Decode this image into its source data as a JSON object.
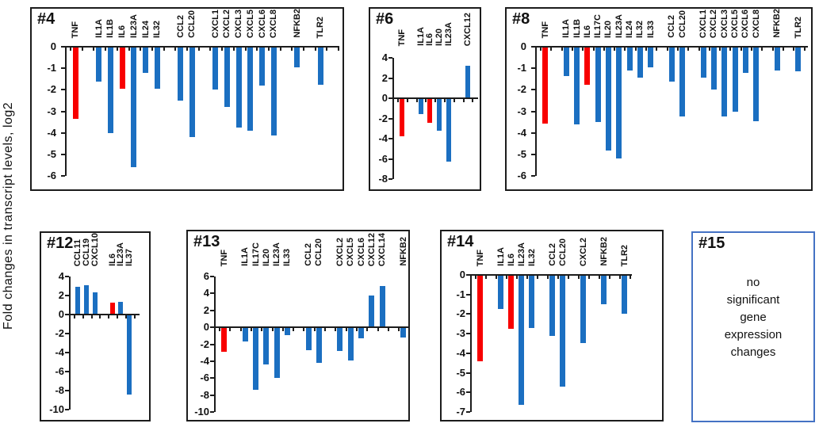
{
  "figure": {
    "y_axis_label": "Fold changes in transcript levels, log2"
  },
  "colors": {
    "bar_blue": "#1b6fc1",
    "bar_red": "#f80000",
    "axis_black": "#1c1c1c",
    "note_border_blue": "#4472c4"
  },
  "chart_data": [
    {
      "id": "4",
      "type": "bar",
      "title": "#4",
      "ylabel": "Fold changes in transcript levels, log2",
      "ylim": [
        -6,
        0
      ],
      "yticks": [
        0,
        -1,
        -2,
        -3,
        -4,
        -5,
        -6
      ],
      "grid": false,
      "slots": [
        {
          "gene": "TNF",
          "value": -3.35,
          "color": "red"
        },
        null,
        {
          "gene": "IL1A",
          "value": -1.6,
          "color": "blue"
        },
        {
          "gene": "IL1B",
          "value": -4.0,
          "color": "blue"
        },
        {
          "gene": "IL6",
          "value": -1.95,
          "color": "red"
        },
        {
          "gene": "IL23A",
          "value": -5.6,
          "color": "blue"
        },
        {
          "gene": "IL24",
          "value": -1.2,
          "color": "blue"
        },
        {
          "gene": "IL32",
          "value": -1.95,
          "color": "blue"
        },
        null,
        {
          "gene": "CCL2",
          "value": -2.5,
          "color": "blue"
        },
        {
          "gene": "CCL20",
          "value": -4.2,
          "color": "blue"
        },
        null,
        {
          "gene": "CXCL1",
          "value": -2.0,
          "color": "blue"
        },
        {
          "gene": "CXCL2",
          "value": -2.8,
          "color": "blue"
        },
        {
          "gene": "CXCL3",
          "value": -3.75,
          "color": "blue"
        },
        {
          "gene": "CXCL5",
          "value": -3.9,
          "color": "blue"
        },
        {
          "gene": "CXCL6",
          "value": -1.8,
          "color": "blue"
        },
        {
          "gene": "CXCL8",
          "value": -4.1,
          "color": "blue"
        },
        null,
        {
          "gene": "NFKB2",
          "value": -0.95,
          "color": "blue"
        },
        null,
        {
          "gene": "TLR2",
          "value": -1.75,
          "color": "blue"
        }
      ]
    },
    {
      "id": "6",
      "type": "bar",
      "title": "#6",
      "ylim": [
        -8,
        4
      ],
      "yticks": [
        4,
        2,
        0,
        -2,
        -4,
        -6,
        -8
      ],
      "grid": false,
      "slots": [
        {
          "gene": "TNF",
          "value": -3.8,
          "color": "red"
        },
        null,
        {
          "gene": "IL1A",
          "value": -1.55,
          "color": "blue"
        },
        {
          "gene": "IL6",
          "value": -2.45,
          "color": "red"
        },
        {
          "gene": "IL20",
          "value": -3.25,
          "color": "blue"
        },
        {
          "gene": "IL23A",
          "value": -6.3,
          "color": "blue"
        },
        null,
        {
          "gene": "CXCL12",
          "value": 3.2,
          "color": "blue"
        },
        null
      ]
    },
    {
      "id": "8",
      "type": "bar",
      "title": "#8",
      "ylim": [
        -6,
        0
      ],
      "yticks": [
        0,
        -1,
        -2,
        -3,
        -4,
        -5,
        -6
      ],
      "grid": false,
      "slots": [
        {
          "gene": "TNF",
          "value": -3.55,
          "color": "red"
        },
        null,
        {
          "gene": "IL1A",
          "value": -1.35,
          "color": "blue"
        },
        {
          "gene": "IL1B",
          "value": -3.6,
          "color": "blue"
        },
        {
          "gene": "IL6",
          "value": -1.75,
          "color": "red"
        },
        {
          "gene": "IL17C",
          "value": -3.5,
          "color": "blue"
        },
        {
          "gene": "IL20",
          "value": -4.8,
          "color": "blue"
        },
        {
          "gene": "IL23A",
          "value": -5.2,
          "color": "blue"
        },
        {
          "gene": "IL24",
          "value": -1.1,
          "color": "blue"
        },
        {
          "gene": "IL32",
          "value": -1.45,
          "color": "blue"
        },
        {
          "gene": "IL33",
          "value": -0.95,
          "color": "blue"
        },
        null,
        {
          "gene": "CCL2",
          "value": -1.6,
          "color": "blue"
        },
        {
          "gene": "CCL20",
          "value": -3.25,
          "color": "blue"
        },
        null,
        {
          "gene": "CXCL1",
          "value": -1.45,
          "color": "blue"
        },
        {
          "gene": "CXCL2",
          "value": -2.0,
          "color": "blue"
        },
        {
          "gene": "CXCL3",
          "value": -3.25,
          "color": "blue"
        },
        {
          "gene": "CXCL5",
          "value": -3.0,
          "color": "blue"
        },
        {
          "gene": "CXCL6",
          "value": -1.2,
          "color": "blue"
        },
        {
          "gene": "CXCL8",
          "value": -3.45,
          "color": "blue"
        },
        null,
        {
          "gene": "NFKB2",
          "value": -1.1,
          "color": "blue"
        },
        null,
        {
          "gene": "TLR2",
          "value": -1.15,
          "color": "blue"
        }
      ]
    },
    {
      "id": "12",
      "type": "bar",
      "title": "#12",
      "ylim": [
        -10,
        4
      ],
      "yticks": [
        4,
        2,
        0,
        -2,
        -4,
        -6,
        -8,
        -10
      ],
      "grid": false,
      "slots": [
        {
          "gene": "CCL11",
          "value": 2.9,
          "color": "blue"
        },
        {
          "gene": "CCL19",
          "value": 3.05,
          "color": "blue"
        },
        {
          "gene": "CXCL10",
          "value": 2.35,
          "color": "blue"
        },
        null,
        {
          "gene": "IL6",
          "value": 1.25,
          "color": "red"
        },
        {
          "gene": "IL23A",
          "value": 1.3,
          "color": "blue"
        },
        {
          "gene": "IL37",
          "value": -8.4,
          "color": "blue"
        }
      ]
    },
    {
      "id": "13",
      "type": "bar",
      "title": "#13",
      "ylim": [
        -10,
        6
      ],
      "yticks": [
        6,
        4,
        2,
        0,
        -2,
        -4,
        -6,
        -8,
        -10
      ],
      "grid": false,
      "slots": [
        {
          "gene": "TNF",
          "value": -2.9,
          "color": "red"
        },
        null,
        {
          "gene": "IL1A",
          "value": -1.7,
          "color": "blue"
        },
        {
          "gene": "IL17C",
          "value": -7.4,
          "color": "blue"
        },
        {
          "gene": "IL20",
          "value": -4.4,
          "color": "blue"
        },
        {
          "gene": "IL23A",
          "value": -6.0,
          "color": "blue"
        },
        {
          "gene": "IL33",
          "value": -0.95,
          "color": "blue"
        },
        null,
        {
          "gene": "CCL2",
          "value": -2.65,
          "color": "blue"
        },
        {
          "gene": "CCL20",
          "value": -4.2,
          "color": "blue"
        },
        null,
        {
          "gene": "CXCL2",
          "value": -2.8,
          "color": "blue"
        },
        {
          "gene": "CXCL5",
          "value": -3.95,
          "color": "blue"
        },
        {
          "gene": "CXCL6",
          "value": -1.3,
          "color": "blue"
        },
        {
          "gene": "CXCL12",
          "value": 3.8,
          "color": "blue"
        },
        {
          "gene": "CXCL14",
          "value": 4.9,
          "color": "blue"
        },
        null,
        {
          "gene": "NFKB2",
          "value": -1.2,
          "color": "blue"
        }
      ]
    },
    {
      "id": "14",
      "type": "bar",
      "title": "#14",
      "ylim": [
        -7,
        0
      ],
      "yticks": [
        0,
        -1,
        -2,
        -3,
        -4,
        -5,
        -6,
        -7
      ],
      "grid": false,
      "slots": [
        {
          "gene": "TNF",
          "value": -4.4,
          "color": "red"
        },
        null,
        {
          "gene": "IL1A",
          "value": -1.75,
          "color": "blue"
        },
        {
          "gene": "IL6",
          "value": -2.75,
          "color": "red"
        },
        {
          "gene": "IL23A",
          "value": -6.65,
          "color": "blue"
        },
        {
          "gene": "IL32",
          "value": -2.7,
          "color": "blue"
        },
        null,
        {
          "gene": "CCL2",
          "value": -3.1,
          "color": "blue"
        },
        {
          "gene": "CCL20",
          "value": -5.7,
          "color": "blue"
        },
        null,
        {
          "gene": "CXCL2",
          "value": -3.5,
          "color": "blue"
        },
        null,
        {
          "gene": "NFKB2",
          "value": -1.5,
          "color": "blue"
        },
        null,
        {
          "gene": "TLR2",
          "value": -2.0,
          "color": "blue"
        }
      ]
    },
    {
      "id": "15",
      "type": "note",
      "title": "#15",
      "lines": [
        "no",
        "significant",
        "gene",
        "expression",
        "changes"
      ]
    }
  ]
}
